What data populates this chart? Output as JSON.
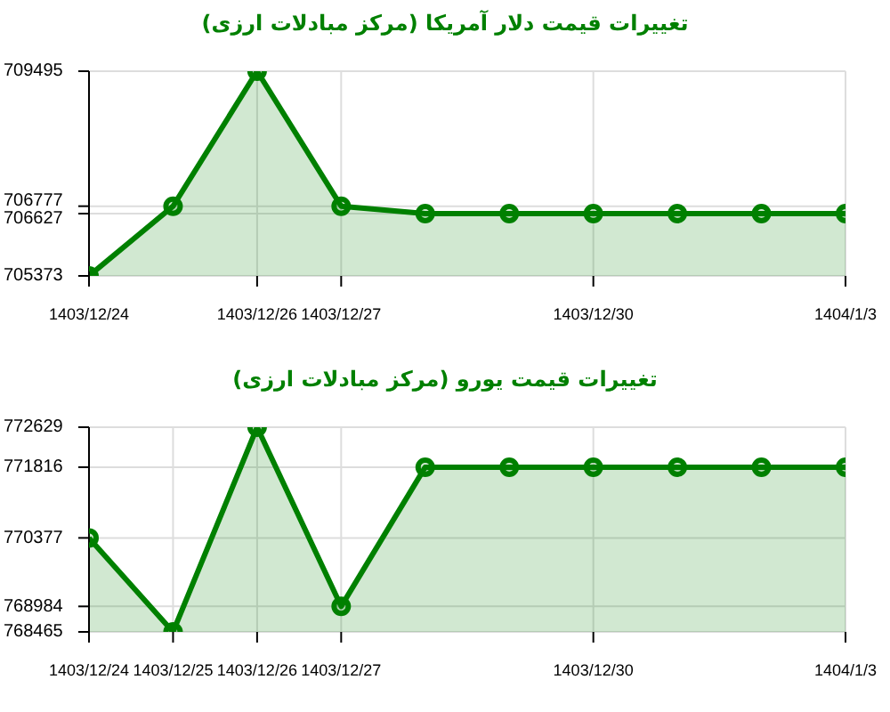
{
  "chart_data": [
    {
      "type": "area",
      "title": "تغییرات قیمت دلار آمریکا (مرکز مبادلات ارزی)",
      "categories": [
        "1403/12/24",
        null,
        "1403/12/26",
        "1403/12/27",
        null,
        null,
        "1403/12/30",
        null,
        null,
        "1404/1/3"
      ],
      "series": [
        {
          "color": "#008000",
          "values": [
            705373,
            706777,
            709495,
            706777,
            706627,
            706627,
            706627,
            706627,
            706627,
            706627
          ]
        }
      ],
      "ylim": [
        705373,
        709495
      ],
      "yticks": [
        705373,
        706627,
        706777,
        709495
      ],
      "grid": true,
      "marker": "circle",
      "legend": false
    },
    {
      "type": "area",
      "title": "تغییرات قیمت یورو (مرکز مبادلات ارزی)",
      "categories": [
        "1403/12/24",
        "1403/12/25",
        "1403/12/26",
        "1403/12/27",
        null,
        null,
        "1403/12/30",
        null,
        null,
        "1404/1/3"
      ],
      "series": [
        {
          "color": "#008000",
          "values": [
            770377,
            768465,
            772629,
            768984,
            771816,
            771816,
            771816,
            771816,
            771816,
            771816
          ]
        }
      ],
      "ylim": [
        768465,
        772629
      ],
      "yticks": [
        768465,
        768984,
        770377,
        771816,
        772629
      ],
      "grid": true,
      "marker": "circle",
      "legend": false
    }
  ]
}
